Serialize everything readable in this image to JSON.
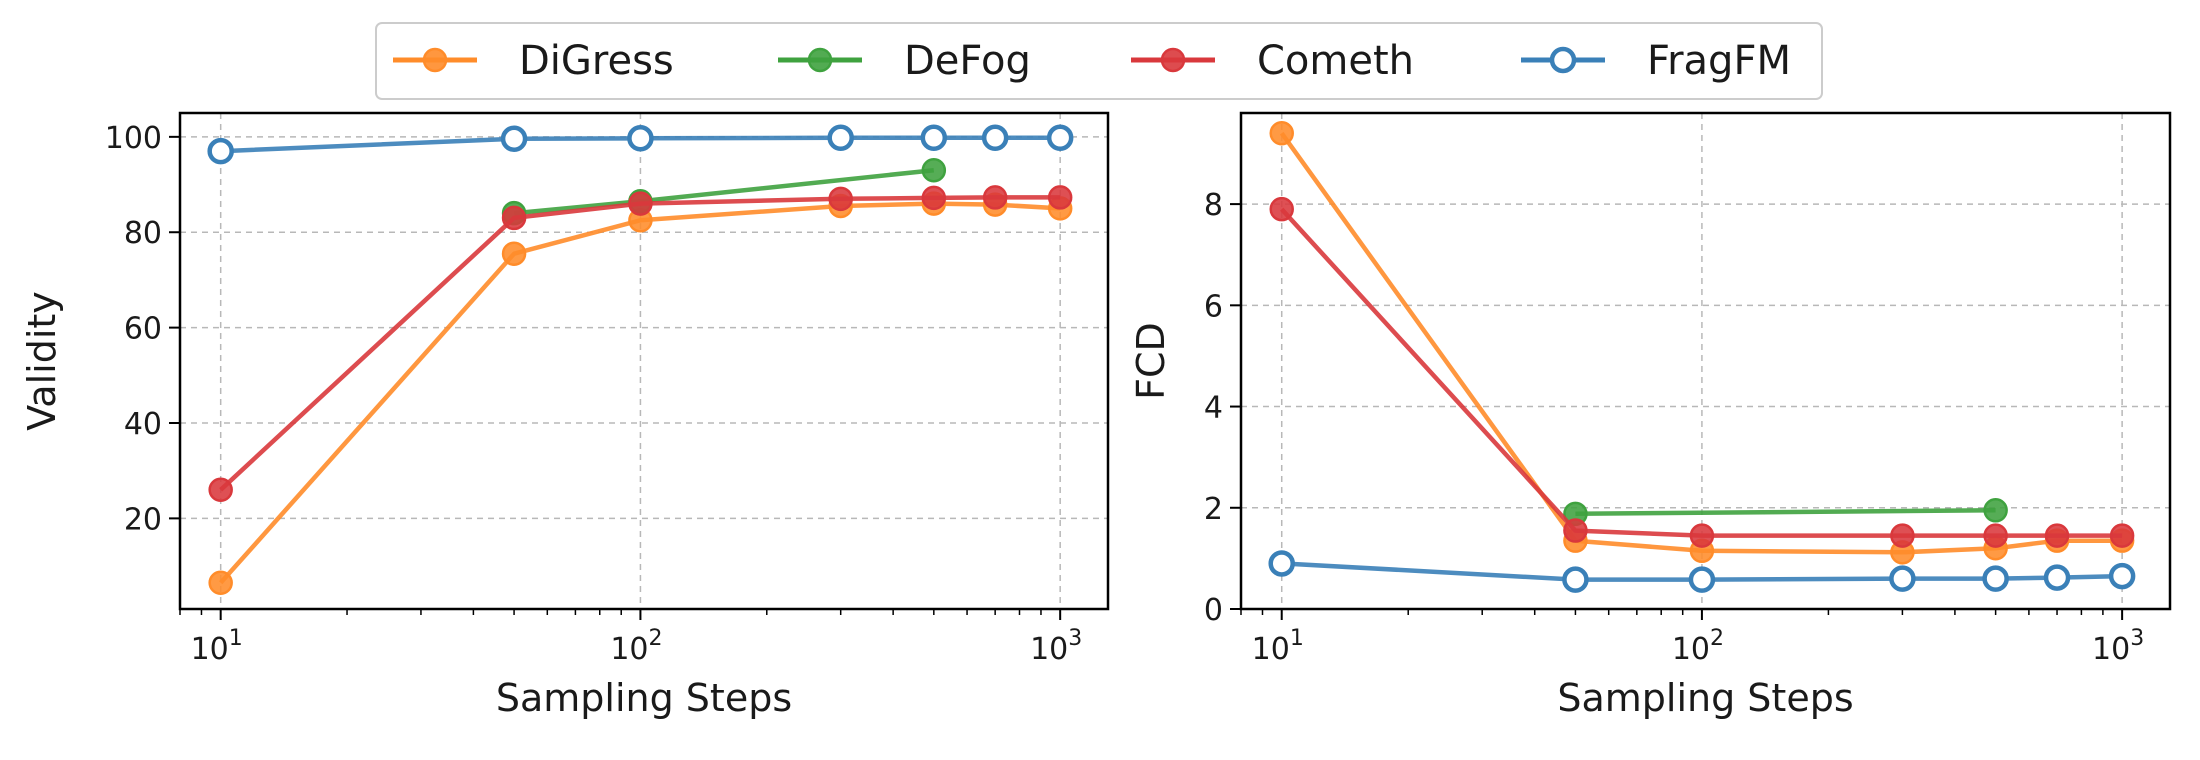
{
  "legend": {
    "placement": "top-center",
    "entries": [
      {
        "name": "DiGress",
        "color": "#ff8c2a",
        "marker": "filled"
      },
      {
        "name": "DeFog",
        "color": "#3fa23f",
        "marker": "filled"
      },
      {
        "name": "Cometh",
        "color": "#d9383c",
        "marker": "filled"
      },
      {
        "name": "FragFM",
        "color": "#3a80b8",
        "marker": "hollow"
      }
    ]
  },
  "chart_data": [
    {
      "type": "line",
      "xlabel": "Sampling Steps",
      "ylabel": "Validity",
      "xscale": "log",
      "xlim": [
        8,
        1300
      ],
      "ylim": [
        1,
        105
      ],
      "xticks": [
        {
          "value": 10,
          "base": "10",
          "exp": "1"
        },
        {
          "value": 100,
          "base": "10",
          "exp": "2"
        },
        {
          "value": 1000,
          "base": "10",
          "exp": "3"
        }
      ],
      "yticks": [
        20,
        40,
        60,
        80,
        100
      ],
      "grid": true,
      "series": [
        {
          "name": "DiGress",
          "color": "#ff8c2a",
          "marker": "filled",
          "x": [
            10,
            50,
            100,
            300,
            500,
            700,
            1000
          ],
          "y": [
            6.5,
            75.5,
            82.5,
            85.5,
            86,
            85.8,
            85
          ]
        },
        {
          "name": "DeFog",
          "color": "#3fa23f",
          "marker": "filled",
          "x": [
            50,
            100,
            500
          ],
          "y": [
            84,
            86.5,
            93
          ]
        },
        {
          "name": "Cometh",
          "color": "#d9383c",
          "marker": "filled",
          "x": [
            10,
            50,
            100,
            300,
            500,
            700,
            1000
          ],
          "y": [
            26,
            83,
            86,
            87,
            87.2,
            87.3,
            87.3
          ]
        },
        {
          "name": "FragFM",
          "color": "#3a80b8",
          "marker": "hollow",
          "x": [
            10,
            50,
            100,
            300,
            500,
            700,
            1000
          ],
          "y": [
            97,
            99.6,
            99.7,
            99.8,
            99.8,
            99.8,
            99.8
          ]
        }
      ]
    },
    {
      "type": "line",
      "xlabel": "Sampling Steps",
      "ylabel": "FCD",
      "xscale": "log",
      "xlim": [
        8,
        1300
      ],
      "ylim": [
        0,
        9.8
      ],
      "xticks": [
        {
          "value": 10,
          "base": "10",
          "exp": "1"
        },
        {
          "value": 100,
          "base": "10",
          "exp": "2"
        },
        {
          "value": 1000,
          "base": "10",
          "exp": "3"
        }
      ],
      "yticks": [
        0,
        2,
        4,
        6,
        8
      ],
      "grid": true,
      "series": [
        {
          "name": "DiGress",
          "color": "#ff8c2a",
          "marker": "filled",
          "x": [
            10,
            50,
            100,
            300,
            500,
            700,
            1000
          ],
          "y": [
            9.4,
            1.35,
            1.15,
            1.12,
            1.2,
            1.35,
            1.35
          ]
        },
        {
          "name": "DeFog",
          "color": "#3fa23f",
          "marker": "filled",
          "x": [
            50,
            500
          ],
          "y": [
            1.88,
            1.95
          ]
        },
        {
          "name": "Cometh",
          "color": "#d9383c",
          "marker": "filled",
          "x": [
            10,
            50,
            100,
            300,
            500,
            700,
            1000
          ],
          "y": [
            7.9,
            1.55,
            1.45,
            1.45,
            1.45,
            1.45,
            1.45
          ]
        },
        {
          "name": "FragFM",
          "color": "#3a80b8",
          "marker": "hollow",
          "x": [
            10,
            50,
            100,
            300,
            500,
            700,
            1000
          ],
          "y": [
            0.9,
            0.58,
            0.58,
            0.6,
            0.6,
            0.62,
            0.65
          ]
        }
      ]
    }
  ]
}
